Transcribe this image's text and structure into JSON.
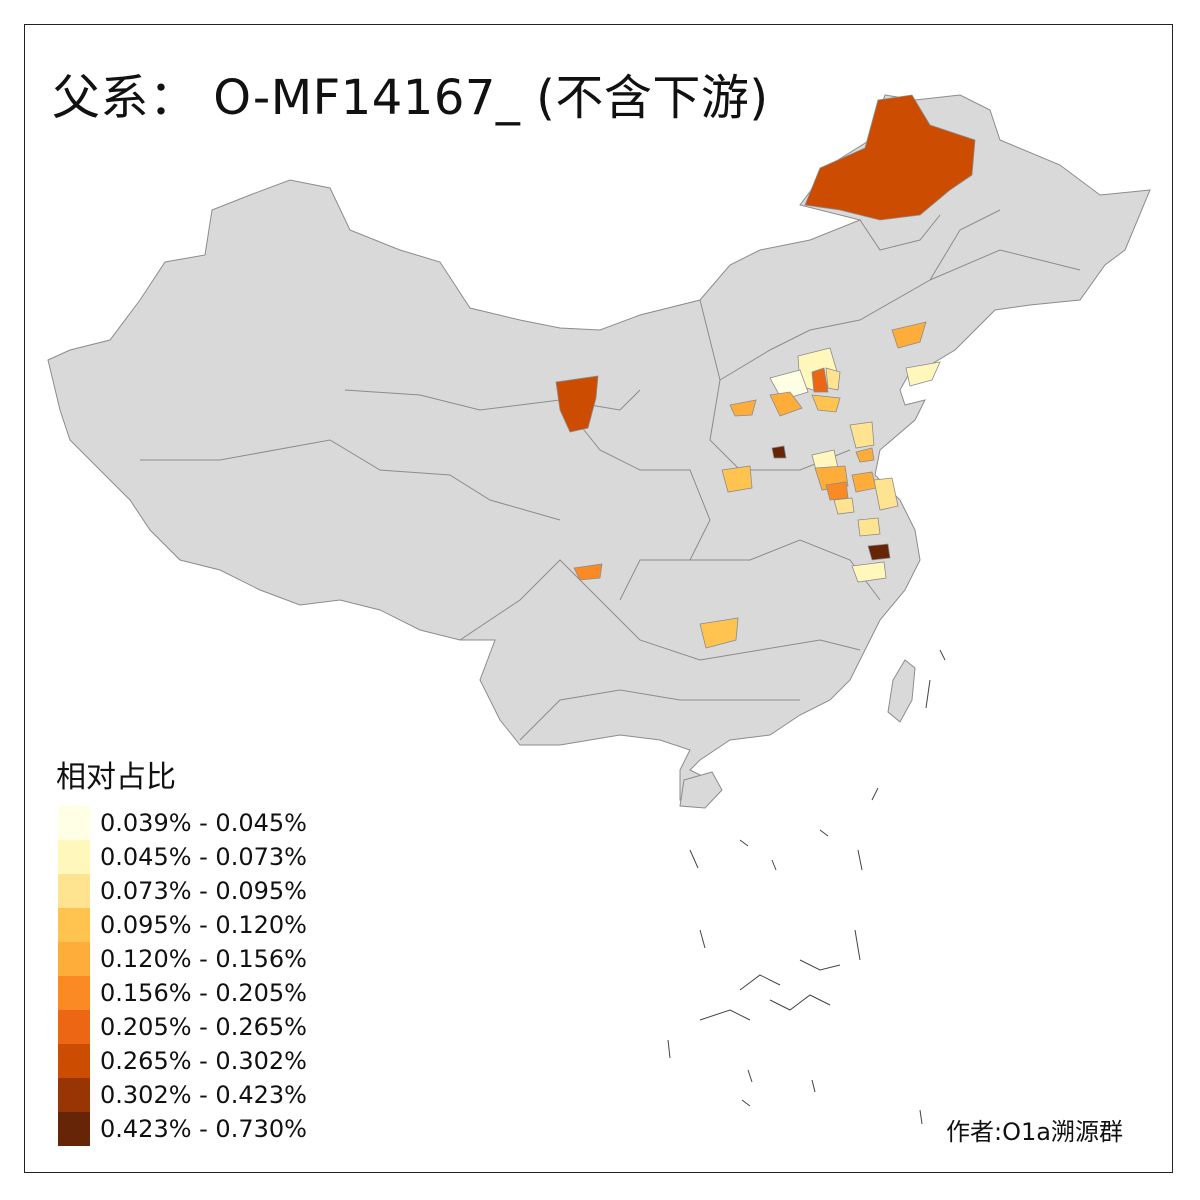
{
  "title": "父系： O-MF14167_ (不含下游)",
  "legend": {
    "title": "相对占比",
    "items": [
      {
        "label": "0.039% - 0.045%",
        "color": "#FFFFE5"
      },
      {
        "label": "0.045% - 0.073%",
        "color": "#FFF7BC"
      },
      {
        "label": "0.073% - 0.095%",
        "color": "#FEE391"
      },
      {
        "label": "0.095% - 0.120%",
        "color": "#FEC44F"
      },
      {
        "label": "0.120% - 0.156%",
        "color": "#FEAD3A"
      },
      {
        "label": "0.156% - 0.205%",
        "color": "#FB8A24"
      },
      {
        "label": "0.205% - 0.265%",
        "color": "#EC6614"
      },
      {
        "label": "0.265% - 0.302%",
        "color": "#CC4C02"
      },
      {
        "label": "0.302% - 0.423%",
        "color": "#993404"
      },
      {
        "label": "0.423% - 0.730%",
        "color": "#662506"
      }
    ]
  },
  "author": "作者:O1a溯源群",
  "colors": {
    "base_fill": "#D9D9D9",
    "border": "#8C8C8C",
    "frame": "#222222"
  }
}
